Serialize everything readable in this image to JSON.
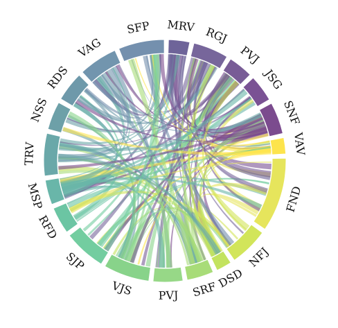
{
  "chart_data": {
    "type": "chord",
    "nodes": [
      {
        "label": "MRV",
        "weight": 3,
        "color": "#6E6499"
      },
      {
        "label": "RGJ",
        "weight": 5,
        "color": "#77669B"
      },
      {
        "label": "PVJ",
        "weight": 3.5,
        "color": "#785C96"
      },
      {
        "label": "JSG",
        "weight": 3.8,
        "color": "#7A5294"
      },
      {
        "label": "SNF",
        "weight": 4.5,
        "color": "#7B4B8E"
      },
      {
        "label": "VAV",
        "weight": 2.3,
        "color": "#FDE44C"
      },
      {
        "label": "FND",
        "weight": 10.5,
        "color": "#E6E55C"
      },
      {
        "label": "NFJ",
        "weight": 5.5,
        "color": "#D2E55A"
      },
      {
        "label": "DSD",
        "weight": 2.2,
        "color": "#C3E35E"
      },
      {
        "label": "SRF",
        "weight": 3.8,
        "color": "#A8DC78"
      },
      {
        "label": "PVJ",
        "weight": 4.2,
        "color": "#97D887"
      },
      {
        "label": "VJS",
        "weight": 6.5,
        "color": "#88D38A"
      },
      {
        "label": "SJP",
        "weight": 6,
        "color": "#73CDA0"
      },
      {
        "label": "RFD",
        "weight": 3.8,
        "color": "#6BC5A3"
      },
      {
        "label": "MSP",
        "weight": 3.5,
        "color": "#69B6A9"
      },
      {
        "label": "TRV",
        "weight": 6,
        "color": "#6AA8A9"
      },
      {
        "label": "NSS",
        "weight": 4,
        "color": "#6DA0A8"
      },
      {
        "label": "RDS",
        "weight": 4.2,
        "color": "#6E99AA"
      },
      {
        "label": "VAG",
        "weight": 5.5,
        "color": "#7295AE"
      },
      {
        "label": "SFP",
        "weight": 6.5,
        "color": "#7490AE"
      }
    ]
  }
}
